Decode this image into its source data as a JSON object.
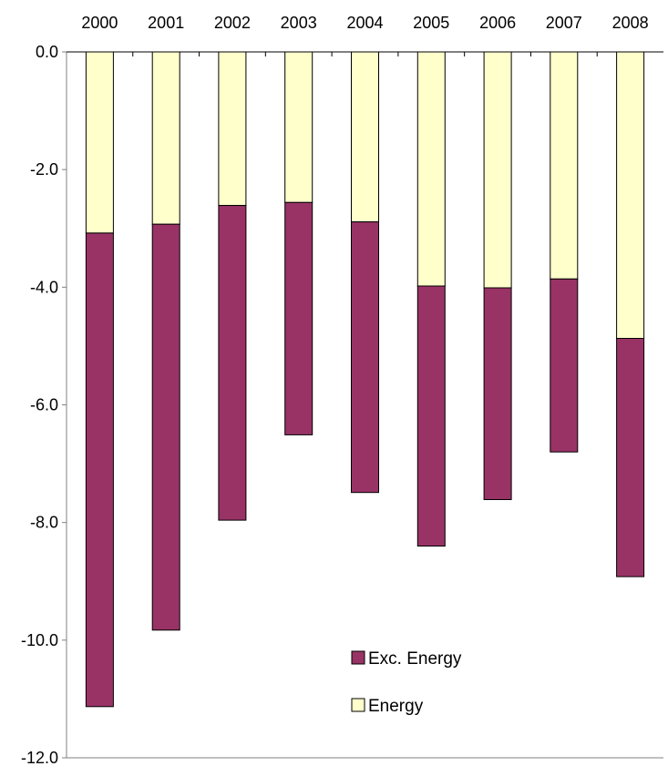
{
  "chart_data": {
    "type": "bar",
    "stacked": true,
    "categories": [
      "2000",
      "2001",
      "2002",
      "2003",
      "2004",
      "2005",
      "2006",
      "2007",
      "2008"
    ],
    "series": [
      {
        "name": "Exc. Energy",
        "values": [
          -8.05,
          -6.9,
          -5.35,
          -3.95,
          -4.6,
          -4.42,
          -3.6,
          -2.94,
          -4.05
        ],
        "color": "#993366"
      },
      {
        "name": "Energy",
        "values": [
          -3.08,
          -2.93,
          -2.61,
          -2.56,
          -2.89,
          -3.98,
          -4.01,
          -3.86,
          -4.87
        ],
        "color": "#ffffcc"
      }
    ],
    "stack_order": [
      "Energy",
      "Exc. Energy"
    ],
    "ylim": [
      -12.0,
      0.0
    ],
    "y_ticks": [
      "0.0",
      "-2.0",
      "-4.0",
      "-6.0",
      "-8.0",
      "-10.0",
      "-12.0"
    ],
    "x_axis_position": "top",
    "grid": false,
    "legend_position": "bottom-center",
    "title": "",
    "xlabel": "",
    "ylabel": ""
  }
}
